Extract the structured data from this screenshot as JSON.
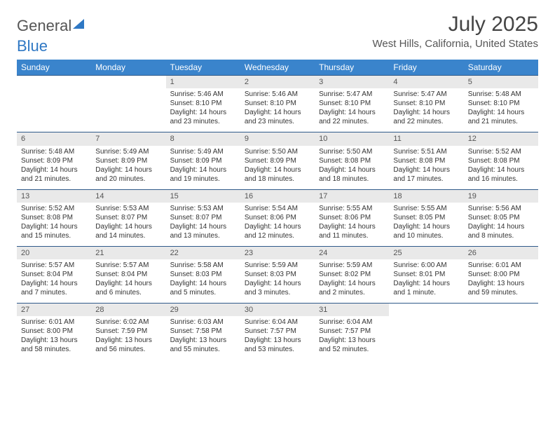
{
  "logo": {
    "text1": "General",
    "text2": "Blue"
  },
  "title": "July 2025",
  "location": "West Hills, California, United States",
  "header_bg": "#3a84cc",
  "header_fg": "#ffffff",
  "daynum_bg": "#e9e9e9",
  "border_color": "#2f5a8a",
  "weekdays": [
    "Sunday",
    "Monday",
    "Tuesday",
    "Wednesday",
    "Thursday",
    "Friday",
    "Saturday"
  ],
  "weeks": [
    [
      null,
      null,
      {
        "n": "1",
        "sr": "5:46 AM",
        "ss": "8:10 PM",
        "dl": "14 hours and 23 minutes."
      },
      {
        "n": "2",
        "sr": "5:46 AM",
        "ss": "8:10 PM",
        "dl": "14 hours and 23 minutes."
      },
      {
        "n": "3",
        "sr": "5:47 AM",
        "ss": "8:10 PM",
        "dl": "14 hours and 22 minutes."
      },
      {
        "n": "4",
        "sr": "5:47 AM",
        "ss": "8:10 PM",
        "dl": "14 hours and 22 minutes."
      },
      {
        "n": "5",
        "sr": "5:48 AM",
        "ss": "8:10 PM",
        "dl": "14 hours and 21 minutes."
      }
    ],
    [
      {
        "n": "6",
        "sr": "5:48 AM",
        "ss": "8:09 PM",
        "dl": "14 hours and 21 minutes."
      },
      {
        "n": "7",
        "sr": "5:49 AM",
        "ss": "8:09 PM",
        "dl": "14 hours and 20 minutes."
      },
      {
        "n": "8",
        "sr": "5:49 AM",
        "ss": "8:09 PM",
        "dl": "14 hours and 19 minutes."
      },
      {
        "n": "9",
        "sr": "5:50 AM",
        "ss": "8:09 PM",
        "dl": "14 hours and 18 minutes."
      },
      {
        "n": "10",
        "sr": "5:50 AM",
        "ss": "8:08 PM",
        "dl": "14 hours and 18 minutes."
      },
      {
        "n": "11",
        "sr": "5:51 AM",
        "ss": "8:08 PM",
        "dl": "14 hours and 17 minutes."
      },
      {
        "n": "12",
        "sr": "5:52 AM",
        "ss": "8:08 PM",
        "dl": "14 hours and 16 minutes."
      }
    ],
    [
      {
        "n": "13",
        "sr": "5:52 AM",
        "ss": "8:08 PM",
        "dl": "14 hours and 15 minutes."
      },
      {
        "n": "14",
        "sr": "5:53 AM",
        "ss": "8:07 PM",
        "dl": "14 hours and 14 minutes."
      },
      {
        "n": "15",
        "sr": "5:53 AM",
        "ss": "8:07 PM",
        "dl": "14 hours and 13 minutes."
      },
      {
        "n": "16",
        "sr": "5:54 AM",
        "ss": "8:06 PM",
        "dl": "14 hours and 12 minutes."
      },
      {
        "n": "17",
        "sr": "5:55 AM",
        "ss": "8:06 PM",
        "dl": "14 hours and 11 minutes."
      },
      {
        "n": "18",
        "sr": "5:55 AM",
        "ss": "8:05 PM",
        "dl": "14 hours and 10 minutes."
      },
      {
        "n": "19",
        "sr": "5:56 AM",
        "ss": "8:05 PM",
        "dl": "14 hours and 8 minutes."
      }
    ],
    [
      {
        "n": "20",
        "sr": "5:57 AM",
        "ss": "8:04 PM",
        "dl": "14 hours and 7 minutes."
      },
      {
        "n": "21",
        "sr": "5:57 AM",
        "ss": "8:04 PM",
        "dl": "14 hours and 6 minutes."
      },
      {
        "n": "22",
        "sr": "5:58 AM",
        "ss": "8:03 PM",
        "dl": "14 hours and 5 minutes."
      },
      {
        "n": "23",
        "sr": "5:59 AM",
        "ss": "8:03 PM",
        "dl": "14 hours and 3 minutes."
      },
      {
        "n": "24",
        "sr": "5:59 AM",
        "ss": "8:02 PM",
        "dl": "14 hours and 2 minutes."
      },
      {
        "n": "25",
        "sr": "6:00 AM",
        "ss": "8:01 PM",
        "dl": "14 hours and 1 minute."
      },
      {
        "n": "26",
        "sr": "6:01 AM",
        "ss": "8:00 PM",
        "dl": "13 hours and 59 minutes."
      }
    ],
    [
      {
        "n": "27",
        "sr": "6:01 AM",
        "ss": "8:00 PM",
        "dl": "13 hours and 58 minutes."
      },
      {
        "n": "28",
        "sr": "6:02 AM",
        "ss": "7:59 PM",
        "dl": "13 hours and 56 minutes."
      },
      {
        "n": "29",
        "sr": "6:03 AM",
        "ss": "7:58 PM",
        "dl": "13 hours and 55 minutes."
      },
      {
        "n": "30",
        "sr": "6:04 AM",
        "ss": "7:57 PM",
        "dl": "13 hours and 53 minutes."
      },
      {
        "n": "31",
        "sr": "6:04 AM",
        "ss": "7:57 PM",
        "dl": "13 hours and 52 minutes."
      },
      null,
      null
    ]
  ],
  "labels": {
    "sunrise": "Sunrise: ",
    "sunset": "Sunset: ",
    "daylight": "Daylight: "
  }
}
